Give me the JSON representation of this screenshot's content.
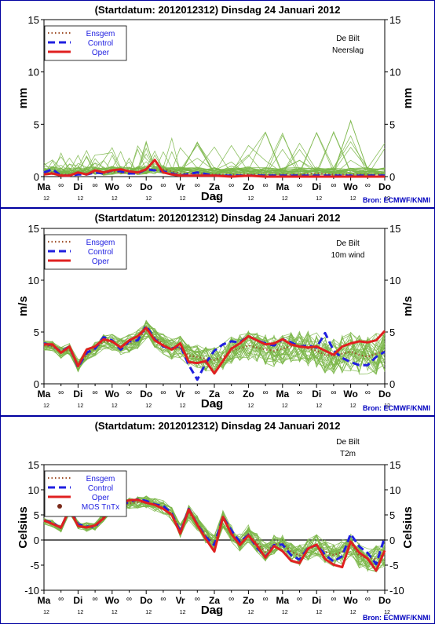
{
  "header": {
    "title": "(Startdatum: 2012012312)   Dinsdag   24 Januari   2012",
    "source": "Bron: ECMWF/KNMI",
    "location": "De Bilt"
  },
  "x_axis": {
    "label": "Dag",
    "days": [
      "Ma",
      "Di",
      "Wo",
      "Do",
      "Vr",
      "Za",
      "Zo",
      "Ma",
      "Di",
      "Wo",
      "Do"
    ],
    "twelve": "12",
    "infinity": "∞"
  },
  "legend": {
    "ensgem": "Ensgem",
    "control": "Control",
    "oper": "Oper",
    "mos": "MOS TnTx"
  },
  "colors": {
    "ensgem": "#a0522d",
    "control": "#2020e0",
    "oper": "#e02020",
    "members": "#7ab648",
    "mos": "#7a2a1a",
    "frame": "#0000a0",
    "zero_line": "#000000"
  },
  "chart_data": [
    {
      "type": "line",
      "panel": "precipitation",
      "title": "(Startdatum: 2012012312)   Dinsdag   24 Januari   2012",
      "station": "De Bilt",
      "variable": "Neerslag",
      "ylabel": "mm",
      "xlabel": "Dag",
      "ylim": [
        0,
        15
      ],
      "yticks": [
        0,
        5,
        10,
        15
      ],
      "x_range_days": [
        0,
        10
      ],
      "source": "",
      "series": [
        {
          "name": "Ensgem",
          "style": "dotted",
          "x": [
            0,
            0.25,
            0.5,
            0.75,
            1,
            1.25,
            1.5,
            1.75,
            2,
            2.25,
            2.5,
            2.75,
            3,
            3.25,
            3.5,
            3.75,
            4,
            4.5,
            5,
            5.5,
            6,
            6.5,
            7,
            7.5,
            8,
            8.5,
            9,
            9.5,
            10
          ],
          "values": [
            0.3,
            0.4,
            0.2,
            0.2,
            0.3,
            0.3,
            0.4,
            0.3,
            0.5,
            0.4,
            0.3,
            0.4,
            0.6,
            0.6,
            0.7,
            0.5,
            0.3,
            0.3,
            0.2,
            0.2,
            0.2,
            0.2,
            0.2,
            0.2,
            0.3,
            0.2,
            0.2,
            0.2,
            0.2
          ]
        },
        {
          "name": "Control",
          "style": "dashed",
          "x": [
            0,
            0.25,
            0.5,
            0.75,
            1,
            1.25,
            1.5,
            1.75,
            2,
            2.25,
            2.5,
            2.75,
            3,
            3.25,
            3.5,
            3.75,
            4,
            4.5,
            5,
            5.5,
            6,
            6.5,
            7,
            7.5,
            8,
            8.5,
            9,
            9.5,
            10
          ],
          "values": [
            0.4,
            0.7,
            0.1,
            0.1,
            0.2,
            0.2,
            0.4,
            0.3,
            0.6,
            0.5,
            0.3,
            0.3,
            0.7,
            0.6,
            0.5,
            0.3,
            0.1,
            0.4,
            0.1,
            0.1,
            0.1,
            0.1,
            0.1,
            0.1,
            0.1,
            0.1,
            0.1,
            0.1,
            0.1
          ]
        },
        {
          "name": "Oper",
          "style": "solid",
          "x": [
            0,
            0.25,
            0.5,
            0.75,
            1,
            1.25,
            1.5,
            1.75,
            2,
            2.25,
            2.5,
            2.75,
            3,
            3.25,
            3.5,
            3.75,
            4,
            4.5,
            5,
            5.5,
            6,
            6.5,
            7,
            7.5,
            8,
            8.5,
            9,
            9.5,
            10
          ],
          "values": [
            0.2,
            0.3,
            0.1,
            0.1,
            0.4,
            0.2,
            0.6,
            0.4,
            0.6,
            0.7,
            0.5,
            0.4,
            0.7,
            1.6,
            0.4,
            0.2,
            0.1,
            0.1,
            0.1,
            0.0,
            0.1,
            0.0,
            0.0,
            0.0,
            0.0,
            0.0,
            0.0,
            0.0,
            0.0
          ]
        }
      ]
    },
    {
      "type": "line",
      "panel": "wind",
      "title": "(Startdatum: 2012012312)   Dinsdag   24 Januari   2012",
      "station": "De Bilt",
      "variable": "10m wind",
      "ylabel": "m/s",
      "xlabel": "Dag",
      "ylim": [
        0,
        15
      ],
      "yticks": [
        0,
        5,
        10,
        15
      ],
      "x_range_days": [
        0,
        10
      ],
      "source": "Bron: ECMWF/KNMI",
      "series": [
        {
          "name": "Ensgem",
          "style": "dotted",
          "x": [
            0,
            0.25,
            0.5,
            0.75,
            1,
            1.25,
            1.5,
            1.75,
            2,
            2.25,
            2.5,
            2.75,
            3,
            3.25,
            3.5,
            3.75,
            4,
            4.25,
            4.5,
            4.75,
            5,
            5.25,
            5.5,
            5.75,
            6,
            6.25,
            6.5,
            6.75,
            7,
            7.25,
            7.5,
            7.75,
            8,
            8.25,
            8.5,
            8.75,
            9,
            9.25,
            9.5,
            9.75,
            10
          ],
          "values": [
            3.7,
            3.6,
            3.0,
            3.3,
            1.8,
            2.8,
            3.4,
            4.1,
            4.0,
            3.6,
            3.9,
            4.3,
            5.2,
            4.5,
            3.8,
            3.3,
            3.5,
            2.7,
            2.6,
            2.4,
            2.3,
            2.6,
            3.2,
            3.4,
            3.7,
            3.5,
            3.3,
            3.2,
            3.4,
            3.6,
            3.7,
            3.4,
            3.2,
            2.8,
            2.7,
            2.9,
            3.1,
            2.8,
            2.6,
            2.9,
            3.2
          ]
        },
        {
          "name": "Control",
          "style": "dashed",
          "x": [
            0,
            0.25,
            0.5,
            0.75,
            1,
            1.25,
            1.5,
            1.75,
            2,
            2.25,
            2.5,
            2.75,
            3,
            3.25,
            3.5,
            3.75,
            4,
            4.25,
            4.5,
            4.75,
            5,
            5.25,
            5.5,
            5.75,
            6,
            6.25,
            6.5,
            6.75,
            7,
            7.25,
            7.5,
            7.75,
            8,
            8.25,
            8.5,
            8.75,
            9,
            9.25,
            9.5,
            9.75,
            10
          ],
          "values": [
            3.9,
            3.7,
            3.1,
            3.6,
            1.6,
            3.0,
            3.4,
            4.5,
            4.2,
            3.3,
            4.1,
            4.2,
            5.6,
            4.3,
            3.6,
            3.4,
            3.7,
            1.8,
            0.4,
            2.0,
            3.2,
            3.8,
            4.1,
            4.0,
            4.6,
            4.2,
            3.9,
            3.7,
            4.3,
            4.0,
            3.6,
            3.7,
            3.5,
            4.9,
            3.2,
            2.5,
            2.1,
            1.8,
            1.8,
            2.6,
            3.1
          ]
        },
        {
          "name": "Oper",
          "style": "solid",
          "x": [
            0,
            0.25,
            0.5,
            0.75,
            1,
            1.25,
            1.5,
            1.75,
            2,
            2.25,
            2.5,
            2.75,
            3,
            3.25,
            3.5,
            3.75,
            4,
            4.25,
            4.5,
            4.75,
            5,
            5.25,
            5.5,
            5.75,
            6,
            6.25,
            6.5,
            6.75,
            7,
            7.25,
            7.5,
            7.75,
            8,
            8.25,
            8.5,
            8.75,
            9,
            9.25,
            9.5,
            9.75,
            10
          ],
          "values": [
            3.8,
            3.8,
            3.0,
            3.6,
            1.7,
            3.3,
            3.6,
            4.3,
            4.1,
            3.5,
            4.2,
            4.6,
            5.4,
            4.2,
            3.7,
            3.3,
            3.9,
            2.1,
            2.0,
            2.2,
            1.0,
            2.2,
            3.4,
            3.9,
            4.6,
            4.2,
            3.8,
            3.9,
            4.3,
            3.8,
            3.6,
            3.5,
            3.6,
            3.2,
            2.8,
            3.6,
            3.9,
            4.1,
            4.0,
            4.2,
            5.1
          ]
        }
      ]
    },
    {
      "type": "line",
      "panel": "temperature",
      "title": "(Startdatum: 2012012312)   Dinsdag   24 Januari   2012",
      "station": "De Bilt",
      "variable": "T2m",
      "ylabel": "Celsius",
      "xlabel": "Dag",
      "ylim": [
        -10,
        15
      ],
      "yticks": [
        -10,
        -5,
        0,
        5,
        10,
        15
      ],
      "x_range_days": [
        0,
        10
      ],
      "source": "Bron: ECMWF/KNMI",
      "series": [
        {
          "name": "Ensgem",
          "style": "dotted",
          "x": [
            0,
            0.25,
            0.5,
            0.75,
            1,
            1.25,
            1.5,
            1.75,
            2,
            2.25,
            2.5,
            2.75,
            3,
            3.25,
            3.5,
            3.75,
            4,
            4.25,
            4.5,
            4.75,
            5,
            5.25,
            5.5,
            5.75,
            6,
            6.25,
            6.5,
            6.75,
            7,
            7.25,
            7.5,
            7.75,
            8,
            8.25,
            8.5,
            8.75,
            9,
            9.25,
            9.5,
            9.75,
            10
          ],
          "values": [
            3.8,
            3.3,
            2.3,
            6.0,
            3.0,
            2.6,
            2.8,
            4.6,
            6.0,
            6.8,
            7.3,
            7.5,
            7.6,
            7.0,
            6.5,
            5.2,
            2.0,
            5.4,
            3.3,
            0.9,
            -0.6,
            4.2,
            1.4,
            -0.4,
            1.2,
            -0.6,
            -2.4,
            -0.9,
            -0.6,
            -2.3,
            -3.1,
            -1.8,
            -1.0,
            -2.3,
            -3.0,
            -2.4,
            -0.7,
            -3.2,
            -3.6,
            -3.8,
            -2.7
          ]
        },
        {
          "name": "Control",
          "style": "dashed",
          "x": [
            0,
            0.25,
            0.5,
            0.75,
            1,
            1.25,
            1.5,
            1.75,
            2,
            2.25,
            2.5,
            2.75,
            3,
            3.25,
            3.5,
            3.75,
            4,
            4.25,
            4.5,
            4.75,
            5,
            5.25,
            5.5,
            5.75,
            6,
            6.25,
            6.5,
            6.75,
            7,
            7.25,
            7.5,
            7.75,
            8,
            8.25,
            8.5,
            8.75,
            9,
            9.25,
            9.5,
            9.75,
            10
          ],
          "values": [
            3.9,
            3.4,
            2.4,
            6.2,
            3.1,
            2.7,
            2.6,
            4.5,
            6.3,
            7.0,
            7.6,
            8.1,
            7.8,
            7.1,
            6.8,
            5.3,
            1.6,
            6.2,
            3.1,
            0.6,
            -1.0,
            4.6,
            1.9,
            -0.4,
            1.0,
            -1.5,
            -3.4,
            -1.0,
            -0.9,
            -3.0,
            -3.9,
            -1.6,
            -1.0,
            -2.9,
            -4.3,
            -3.2,
            1.2,
            -1.3,
            -2.6,
            -4.8,
            0.6
          ]
        },
        {
          "name": "Oper",
          "style": "solid",
          "x": [
            0,
            0.25,
            0.5,
            0.75,
            1,
            1.25,
            1.5,
            1.75,
            2,
            2.25,
            2.5,
            2.75,
            3,
            3.25,
            3.5,
            3.75,
            4,
            4.25,
            4.5,
            4.75,
            5,
            5.25,
            5.5,
            5.75,
            6,
            6.25,
            6.5,
            6.75,
            7,
            7.25,
            7.5,
            7.75,
            8,
            8.25,
            8.5,
            8.75,
            9,
            9.25,
            9.5,
            9.75,
            10
          ],
          "values": [
            3.9,
            3.2,
            2.5,
            6.1,
            2.8,
            2.5,
            2.9,
            4.3,
            6.6,
            7.3,
            7.9,
            8.0,
            7.4,
            7.0,
            6.2,
            5.0,
            1.3,
            6.1,
            3.0,
            0.2,
            -2.3,
            4.6,
            1.2,
            -1.0,
            0.9,
            -1.1,
            -3.5,
            -1.2,
            -2.2,
            -4.1,
            -4.6,
            -1.7,
            -0.9,
            -3.8,
            -4.9,
            -5.4,
            -0.3,
            -2.5,
            -3.7,
            -6.1,
            -2.1
          ]
        }
      ]
    }
  ]
}
